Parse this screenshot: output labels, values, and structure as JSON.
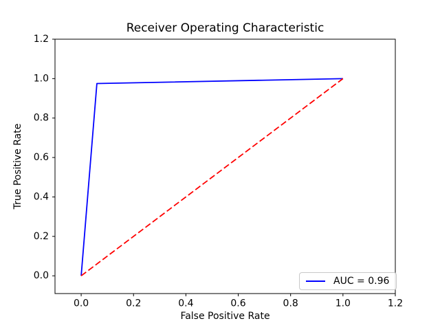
{
  "figure": {
    "background": "#ffffff"
  },
  "chart_data": {
    "type": "line",
    "title": "Receiver Operating Characteristic",
    "xlabel": "False Positive Rate",
    "ylabel": "True Positive Rate",
    "xlim": [
      -0.1,
      1.2
    ],
    "ylim": [
      -0.09,
      1.2
    ],
    "xticks": [
      0.0,
      0.2,
      0.4,
      0.6,
      0.8,
      1.0,
      1.2
    ],
    "yticks": [
      0.0,
      0.2,
      0.4,
      0.6,
      0.8,
      1.0,
      1.2
    ],
    "grid": false,
    "axis_color": "#000000",
    "legend": {
      "position": "lower right",
      "entries": [
        {
          "label": "AUC = 0.96",
          "color": "#0000ff",
          "style": "solid"
        }
      ]
    },
    "series": [
      {
        "name": "roc-curve",
        "color": "#0000ff",
        "style": "solid",
        "points": [
          [
            0.0,
            0.0
          ],
          [
            0.06,
            0.975
          ],
          [
            1.0,
            1.0
          ]
        ]
      },
      {
        "name": "chance-diagonal",
        "color": "#ff0000",
        "style": "dashed",
        "points": [
          [
            0.0,
            0.0
          ],
          [
            1.0,
            1.0
          ]
        ]
      }
    ]
  }
}
